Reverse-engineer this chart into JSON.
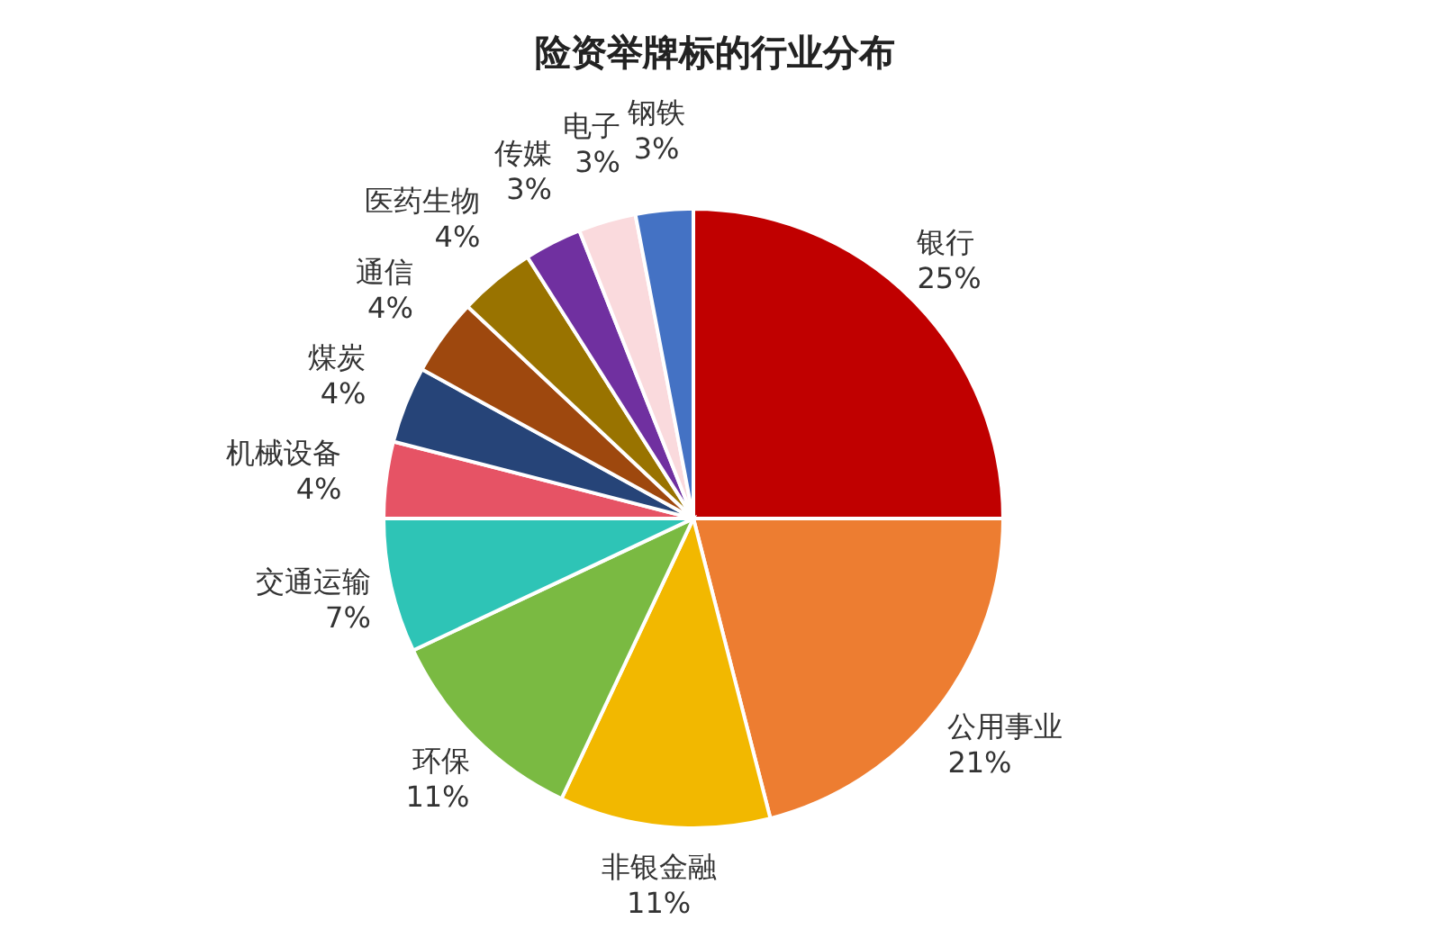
{
  "chart_data": {
    "type": "pie",
    "title": "险资举牌标的行业分布",
    "categories": [
      "银行",
      "公用事业",
      "非银金融",
      "环保",
      "交通运输",
      "机械设备",
      "煤炭",
      "通信",
      "医药生物",
      "传媒",
      "电子",
      "钢铁"
    ],
    "values": [
      25,
      21,
      11,
      11,
      7,
      4,
      4,
      4,
      4,
      3,
      3,
      3
    ],
    "colors": [
      "#c00000",
      "#ed7d31",
      "#f2b800",
      "#7aba42",
      "#2ec4b6",
      "#e65365",
      "#264478",
      "#9e480e",
      "#997300",
      "#7030a0",
      "#fadadd",
      "#4472c4"
    ],
    "value_labels": [
      "25%",
      "21%",
      "11%",
      "11%",
      "7%",
      "4%",
      "4%",
      "4%",
      "4%",
      "3%",
      "3%",
      "3%"
    ]
  }
}
